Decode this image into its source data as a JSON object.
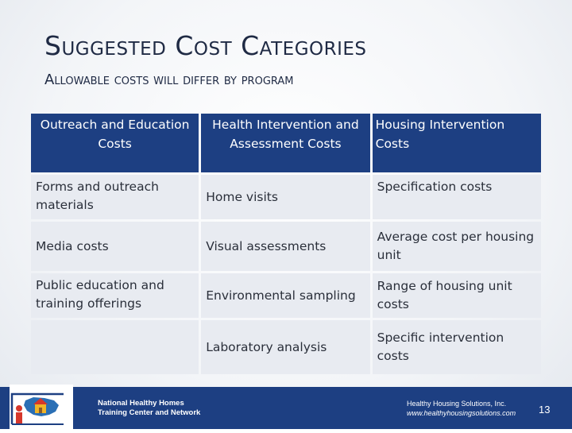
{
  "slide": {
    "title": "Suggested Cost Categories",
    "subtitle": "Allowable costs will differ by program"
  },
  "table": {
    "headers": [
      "Outreach and Education Costs",
      "Health Intervention and Assessment Costs",
      "Housing Intervention Costs"
    ],
    "rows": [
      [
        "Forms and outreach materials",
        "Home visits",
        "Specification costs"
      ],
      [
        "Media costs",
        "Visual assessments",
        "Average cost per housing unit"
      ],
      [
        "Public education and training offerings",
        "Environmental sampling",
        "Range of housing unit costs"
      ],
      [
        "",
        "Laboratory analysis",
        "Specific intervention costs"
      ]
    ]
  },
  "footer": {
    "org_line1": "National Healthy Homes",
    "org_line2": "Training Center and Network",
    "credit_line1": "Healthy Housing Solutions, Inc.",
    "credit_line2": "www.healthyhousingsolutions.com",
    "page_number": "13",
    "logo_icon": "house-map-logo-icon",
    "brand_color": "#1d3f82"
  }
}
